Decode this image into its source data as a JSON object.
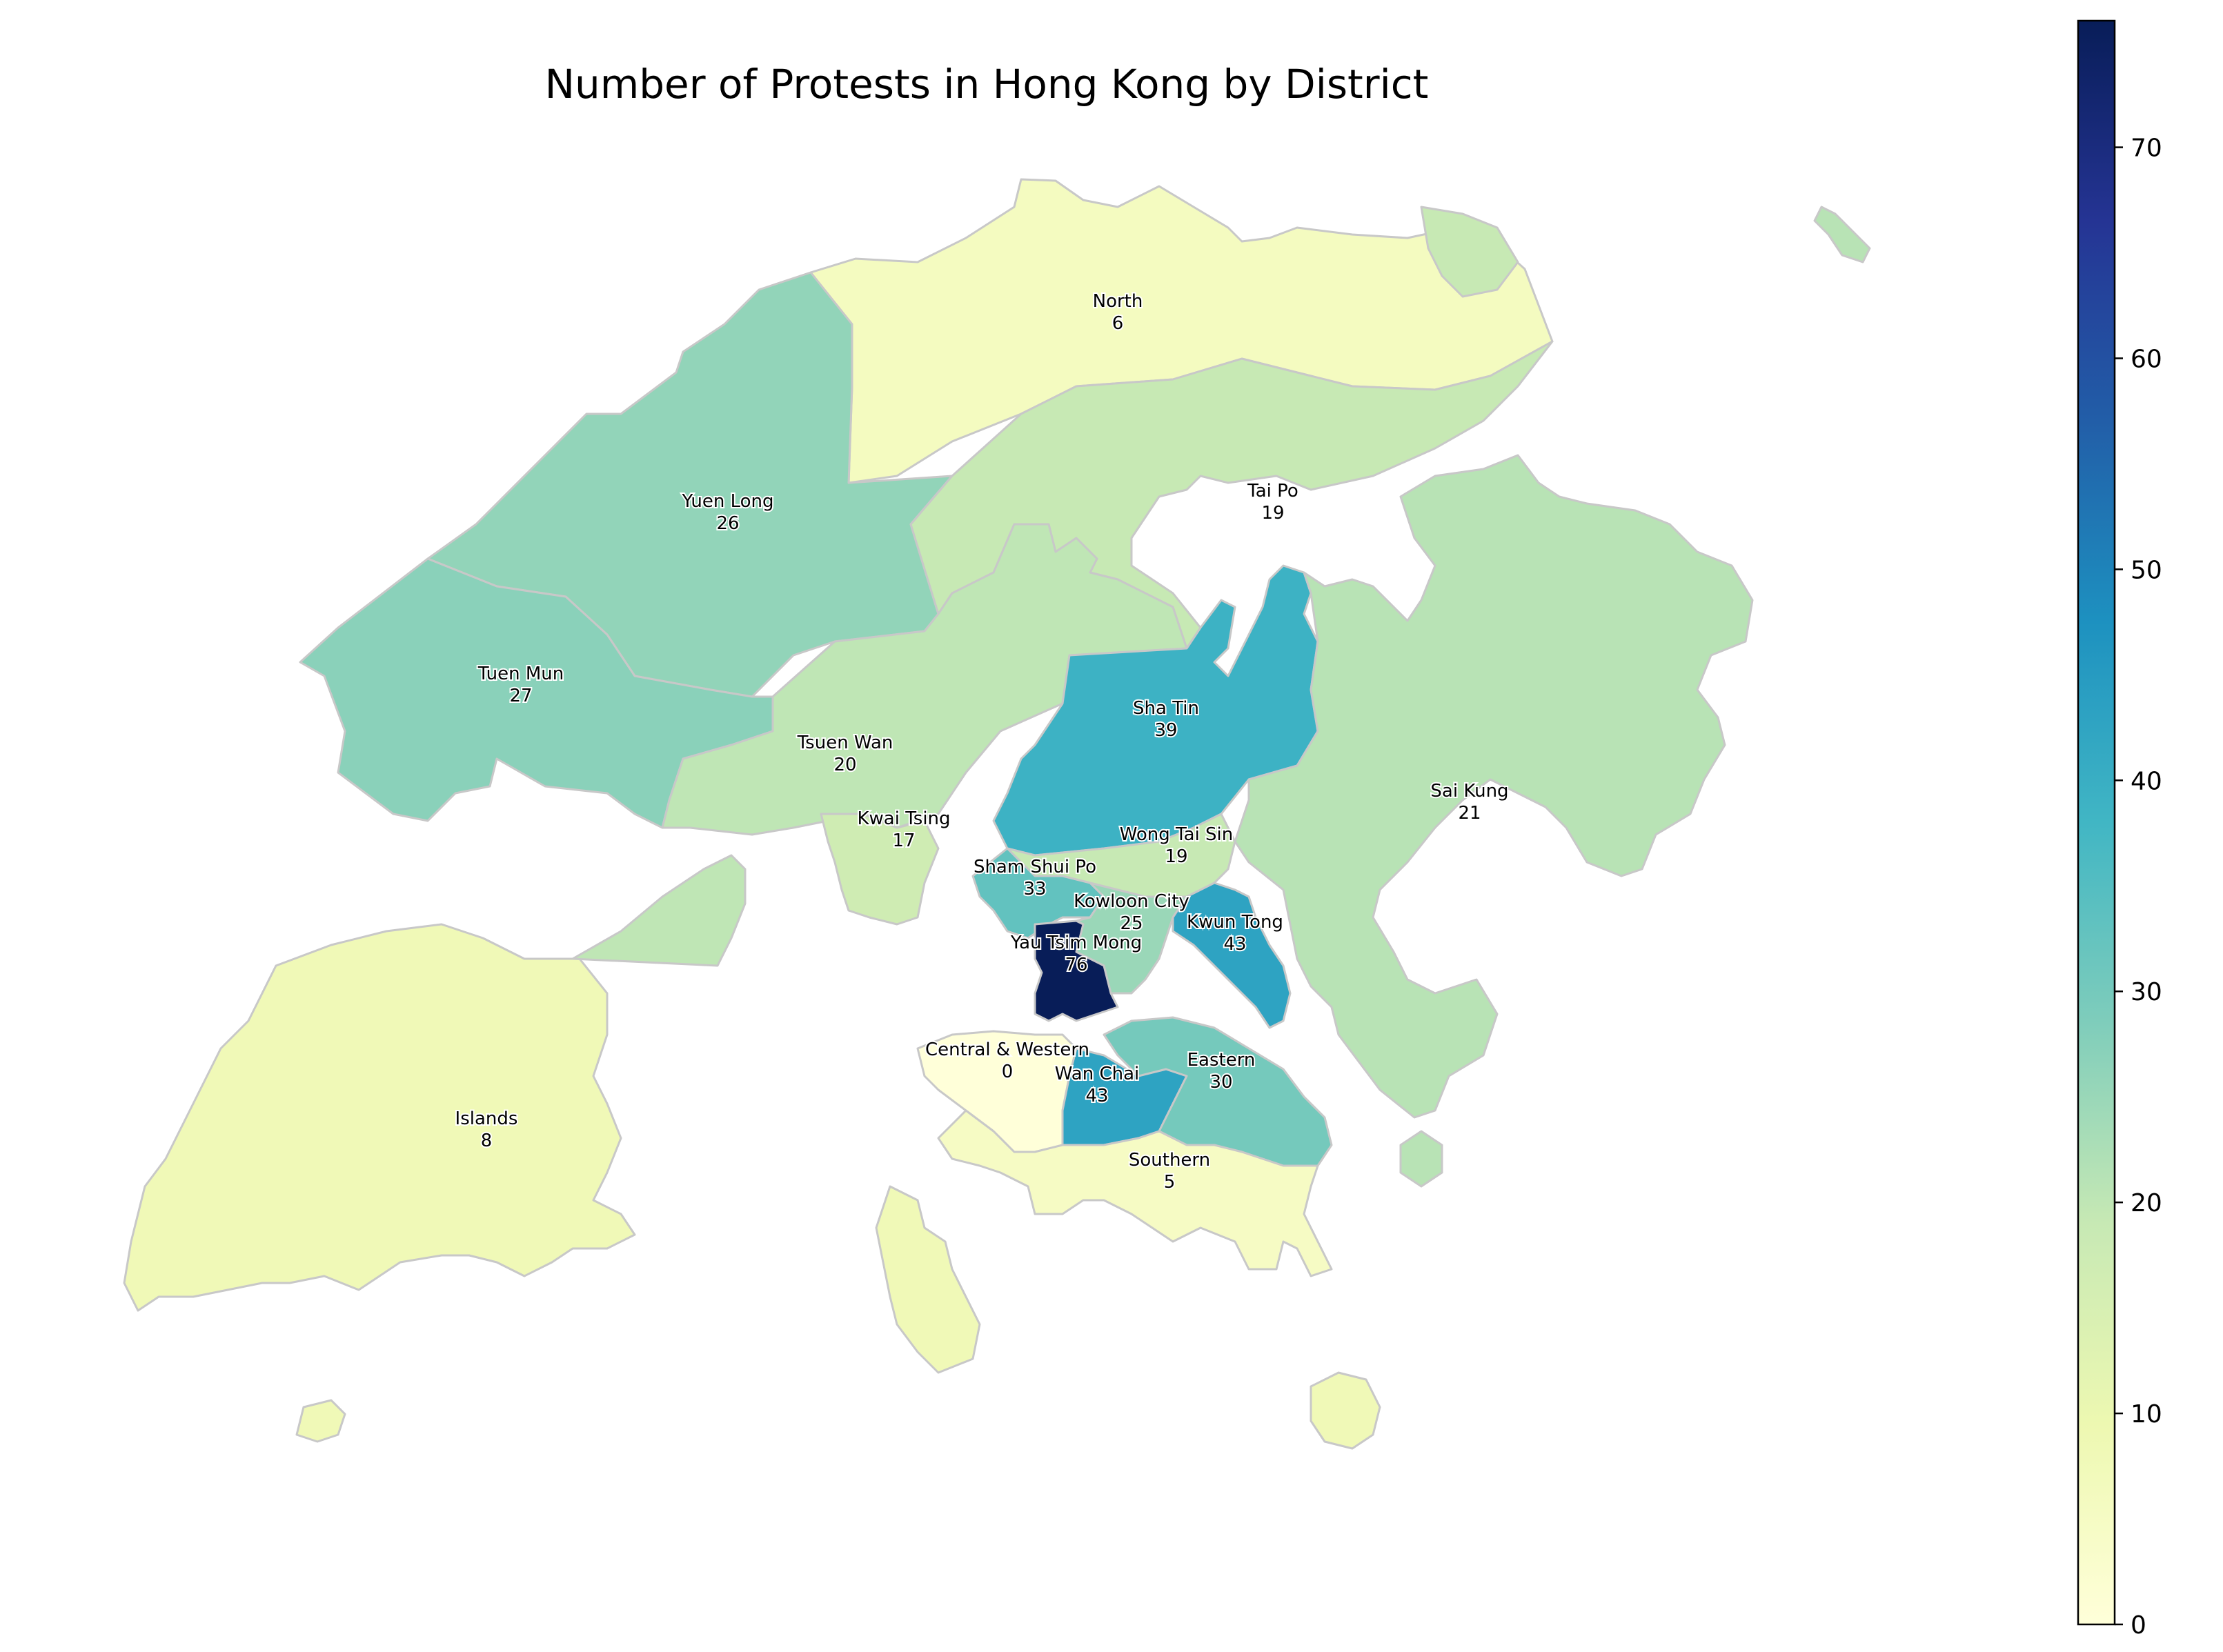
{
  "title": "Number of Protests in Hong Kong by District",
  "chart_data": {
    "type": "choropleth",
    "metric": "Number of Protests",
    "colormap": "YlGnBu",
    "value_range": [
      0,
      76
    ],
    "colorbar_ticks": [
      0,
      10,
      20,
      30,
      40,
      50,
      60,
      70
    ],
    "districts": [
      {
        "name": "North",
        "value": 6
      },
      {
        "name": "Tai Po",
        "value": 19
      },
      {
        "name": "Yuen Long",
        "value": 26
      },
      {
        "name": "Tuen Mun",
        "value": 27
      },
      {
        "name": "Tsuen Wan",
        "value": 20
      },
      {
        "name": "Sha Tin",
        "value": 39
      },
      {
        "name": "Sai Kung",
        "value": 21
      },
      {
        "name": "Kwai Tsing",
        "value": 17
      },
      {
        "name": "Wong Tai Sin",
        "value": 19
      },
      {
        "name": "Sham Shui Po",
        "value": 33
      },
      {
        "name": "Kowloon City",
        "value": 25
      },
      {
        "name": "Kwun Tong",
        "value": 43
      },
      {
        "name": "Yau Tsim Mong",
        "value": 76
      },
      {
        "name": "Central & Western",
        "value": 0
      },
      {
        "name": "Wan Chai",
        "value": 43
      },
      {
        "name": "Eastern",
        "value": 30
      },
      {
        "name": "Islands",
        "value": 8
      },
      {
        "name": "Southern",
        "value": 5
      }
    ]
  }
}
